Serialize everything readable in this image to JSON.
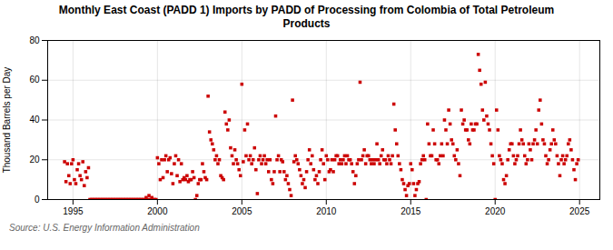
{
  "chart_data": {
    "type": "scatter",
    "title": "Monthly East Coast (PADD 1) Imports by PADD of Processing from Colombia of Total Petroleum\nProducts",
    "ylabel": "Thousand Barrels per Day",
    "annotations": [
      "Source: U.S. Energy Information Administration"
    ],
    "color": "#cc0000",
    "marker": "square",
    "grid": true,
    "xlim": [
      1993.5,
      2026.2
    ],
    "ylim": [
      0,
      80
    ],
    "xticks": [
      1995,
      2000,
      2005,
      2010,
      2015,
      2020,
      2025
    ],
    "yticks": [
      0,
      20,
      40,
      60,
      80
    ],
    "x": [
      1994.5,
      1994.583,
      1994.667,
      1994.75,
      1994.833,
      1994.917,
      1995.0,
      1995.083,
      1995.167,
      1995.25,
      1995.333,
      1995.417,
      1995.5,
      1995.583,
      1995.667,
      1995.75,
      1995.833,
      1995.917,
      1996.0,
      1996.083,
      1996.167,
      1996.25,
      1996.333,
      1996.417,
      1996.5,
      1996.583,
      1996.667,
      1996.75,
      1996.833,
      1996.917,
      1997.0,
      1997.083,
      1997.167,
      1997.25,
      1997.333,
      1997.417,
      1997.5,
      1997.583,
      1997.667,
      1997.75,
      1997.833,
      1997.917,
      1998.0,
      1998.083,
      1998.167,
      1998.25,
      1998.333,
      1998.417,
      1998.5,
      1998.583,
      1998.667,
      1998.75,
      1998.833,
      1998.917,
      1999.0,
      1999.083,
      1999.167,
      1999.25,
      1999.333,
      1999.417,
      1999.5,
      1999.583,
      1999.667,
      1999.75,
      1999.833,
      1999.917,
      2000.0,
      2000.083,
      2000.167,
      2000.25,
      2000.333,
      2000.417,
      2000.5,
      2000.583,
      2000.667,
      2000.75,
      2000.833,
      2000.917,
      2001.0,
      2001.083,
      2001.167,
      2001.25,
      2001.333,
      2001.417,
      2001.5,
      2001.583,
      2001.667,
      2001.75,
      2001.833,
      2001.917,
      2002.0,
      2002.083,
      2002.167,
      2002.25,
      2002.333,
      2002.417,
      2002.5,
      2002.583,
      2002.667,
      2002.75,
      2002.833,
      2002.917,
      2003.0,
      2003.083,
      2003.167,
      2003.25,
      2003.333,
      2003.417,
      2003.5,
      2003.583,
      2003.667,
      2003.75,
      2003.833,
      2003.917,
      2004.0,
      2004.083,
      2004.167,
      2004.25,
      2004.333,
      2004.417,
      2004.5,
      2004.583,
      2004.667,
      2004.75,
      2004.833,
      2004.917,
      2005.0,
      2005.083,
      2005.167,
      2005.25,
      2005.333,
      2005.417,
      2005.5,
      2005.583,
      2005.667,
      2005.75,
      2005.833,
      2005.917,
      2006.0,
      2006.083,
      2006.167,
      2006.25,
      2006.333,
      2006.417,
      2006.5,
      2006.583,
      2006.667,
      2006.75,
      2006.833,
      2006.917,
      2007.0,
      2007.083,
      2007.167,
      2007.25,
      2007.333,
      2007.417,
      2007.5,
      2007.583,
      2007.667,
      2007.75,
      2007.833,
      2007.917,
      2008.0,
      2008.083,
      2008.167,
      2008.25,
      2008.333,
      2008.417,
      2008.5,
      2008.583,
      2008.667,
      2008.75,
      2008.833,
      2008.917,
      2009.0,
      2009.083,
      2009.167,
      2009.25,
      2009.333,
      2009.417,
      2009.5,
      2009.583,
      2009.667,
      2009.75,
      2009.833,
      2009.917,
      2010.0,
      2010.083,
      2010.167,
      2010.25,
      2010.333,
      2010.417,
      2010.5,
      2010.583,
      2010.667,
      2010.75,
      2010.833,
      2010.917,
      2011.0,
      2011.083,
      2011.167,
      2011.25,
      2011.333,
      2011.417,
      2011.5,
      2011.583,
      2011.667,
      2011.75,
      2011.833,
      2011.917,
      2012.0,
      2012.083,
      2012.167,
      2012.25,
      2012.333,
      2012.417,
      2012.5,
      2012.583,
      2012.667,
      2012.75,
      2012.833,
      2012.917,
      2013.0,
      2013.083,
      2013.167,
      2013.25,
      2013.333,
      2013.417,
      2013.5,
      2013.583,
      2013.667,
      2013.75,
      2013.833,
      2013.917,
      2014.0,
      2014.083,
      2014.167,
      2014.25,
      2014.333,
      2014.417,
      2014.5,
      2014.583,
      2014.667,
      2014.75,
      2014.833,
      2014.917,
      2015.0,
      2015.083,
      2015.167,
      2015.25,
      2015.333,
      2015.417,
      2015.5,
      2015.583,
      2015.667,
      2015.75,
      2015.833,
      2015.917,
      2016.0,
      2016.083,
      2016.167,
      2016.25,
      2016.333,
      2016.417,
      2016.5,
      2016.583,
      2016.667,
      2016.75,
      2016.833,
      2016.917,
      2017.0,
      2017.083,
      2017.167,
      2017.25,
      2017.333,
      2017.417,
      2017.5,
      2017.583,
      2017.667,
      2017.75,
      2017.833,
      2017.917,
      2018.0,
      2018.083,
      2018.167,
      2018.25,
      2018.333,
      2018.417,
      2018.5,
      2018.583,
      2018.667,
      2018.75,
      2018.833,
      2018.917,
      2019.0,
      2019.083,
      2019.167,
      2019.25,
      2019.333,
      2019.417,
      2019.5,
      2019.583,
      2019.667,
      2019.75,
      2019.833,
      2019.917,
      2020.0,
      2020.083,
      2020.167,
      2020.25,
      2020.333,
      2020.417,
      2020.5,
      2020.583,
      2020.667,
      2020.75,
      2020.833,
      2020.917,
      2021.0,
      2021.083,
      2021.167,
      2021.25,
      2021.333,
      2021.417,
      2021.5,
      2021.583,
      2021.667,
      2021.75,
      2021.833,
      2021.917,
      2022.0,
      2022.083,
      2022.167,
      2022.25,
      2022.333,
      2022.417,
      2022.5,
      2022.583,
      2022.667,
      2022.75,
      2022.833,
      2022.917,
      2023.0,
      2023.083,
      2023.167,
      2023.25,
      2023.333,
      2023.417,
      2023.5,
      2023.583,
      2023.667,
      2023.75,
      2023.833,
      2023.917,
      2024.0,
      2024.083,
      2024.167,
      2024.25,
      2024.333,
      2024.417,
      2024.5,
      2024.583,
      2024.667,
      2024.75,
      2024.833,
      2024.917
    ],
    "values": [
      19,
      9,
      18,
      12,
      8,
      18,
      20,
      10,
      8,
      15,
      18,
      12,
      10,
      19,
      7,
      14,
      11,
      16,
      0,
      0,
      0,
      0,
      0,
      0,
      0,
      0,
      0,
      0,
      0,
      0,
      0,
      0,
      0,
      0,
      0,
      0,
      0,
      0,
      0,
      0,
      0,
      0,
      0,
      0,
      0,
      0,
      0,
      0,
      0,
      0,
      0,
      0,
      0,
      0,
      0,
      0,
      0,
      0,
      1,
      0,
      2,
      0,
      1,
      0,
      0,
      0,
      21,
      18,
      10,
      20,
      11,
      20,
      22,
      14,
      20,
      21,
      13,
      8,
      18,
      22,
      12,
      20,
      9,
      18,
      10,
      11,
      10,
      12,
      9,
      10,
      10,
      14,
      11,
      0,
      2,
      8,
      10,
      10,
      18,
      14,
      11,
      10,
      52,
      34,
      30,
      28,
      25,
      20,
      22,
      18,
      20,
      12,
      11,
      10,
      44,
      38,
      35,
      40,
      26,
      22,
      18,
      25,
      20,
      18,
      15,
      12,
      58,
      19,
      35,
      22,
      38,
      20,
      22,
      18,
      20,
      26,
      15,
      3,
      20,
      22,
      18,
      20,
      22,
      18,
      20,
      14,
      20,
      10,
      8,
      14,
      42,
      20,
      22,
      14,
      20,
      19,
      14,
      10,
      12,
      8,
      5,
      2,
      50,
      19,
      22,
      20,
      18,
      15,
      12,
      8,
      10,
      6,
      14,
      20,
      25,
      18,
      22,
      15,
      10,
      12,
      8,
      14,
      20,
      25,
      18,
      10,
      22,
      20,
      14,
      15,
      20,
      14,
      20,
      22,
      22,
      18,
      20,
      18,
      20,
      22,
      18,
      22,
      20,
      20,
      18,
      14,
      8,
      12,
      18,
      20,
      59,
      20,
      22,
      25,
      18,
      22,
      22,
      20,
      18,
      20,
      18,
      20,
      28,
      20,
      18,
      22,
      25,
      20,
      20,
      18,
      22,
      20,
      18,
      22,
      48,
      35,
      28,
      22,
      18,
      15,
      10,
      8,
      5,
      2,
      7,
      8,
      18,
      15,
      8,
      2,
      5,
      8,
      9,
      18,
      20,
      22,
      20,
      0,
      38,
      28,
      22,
      22,
      35,
      28,
      20,
      20,
      18,
      22,
      28,
      22,
      40,
      35,
      28,
      45,
      38,
      30,
      28,
      22,
      20,
      25,
      18,
      12,
      45,
      38,
      40,
      35,
      35,
      30,
      28,
      38,
      35,
      35,
      38,
      38,
      73,
      65,
      58,
      45,
      40,
      59,
      42,
      38,
      35,
      28,
      22,
      18,
      0,
      45,
      35,
      22,
      20,
      18,
      10,
      8,
      12,
      20,
      25,
      28,
      28,
      22,
      18,
      20,
      22,
      28,
      35,
      30,
      28,
      22,
      18,
      20,
      28,
      25,
      20,
      28,
      30,
      35,
      28,
      45,
      50,
      38,
      30,
      28,
      22,
      18,
      20,
      25,
      28,
      35,
      30,
      28,
      22,
      18,
      12,
      20,
      22,
      18,
      20,
      22,
      28,
      30,
      25,
      20,
      15,
      10,
      18,
      20
    ]
  }
}
